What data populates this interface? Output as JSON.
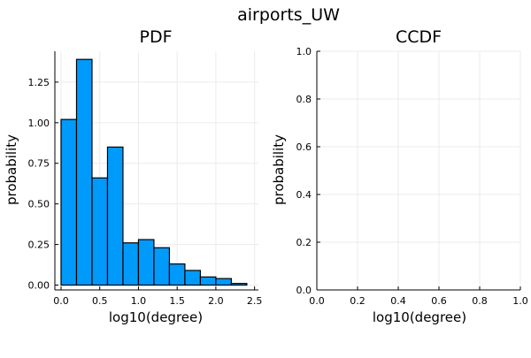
{
  "figure": {
    "title": "airports_UW",
    "colors": {
      "bar_fill": "#009AFA",
      "bar_stroke": "#000000",
      "grid": "#EBEBEB",
      "axis": "#000000"
    }
  },
  "chart_data": [
    {
      "type": "bar",
      "title": "PDF",
      "xlabel": "log10(degree)",
      "ylabel": "probability",
      "xlim": [
        -0.08,
        2.55
      ],
      "ylim": [
        -0.03,
        1.44
      ],
      "grid": true,
      "xticks": [
        0.0,
        0.5,
        1.0,
        1.5,
        2.0,
        2.5
      ],
      "xtick_labels": [
        "0.0",
        "0.5",
        "1.0",
        "1.5",
        "2.0",
        "2.5"
      ],
      "yticks": [
        0.0,
        0.25,
        0.5,
        0.75,
        1.0,
        1.25
      ],
      "ytick_labels": [
        "0.00",
        "0.25",
        "0.50",
        "0.75",
        "1.00",
        "1.25"
      ],
      "bin_edges": [
        0.0,
        0.2,
        0.4,
        0.6,
        0.8,
        1.0,
        1.2,
        1.4,
        1.6,
        1.8,
        2.0,
        2.2,
        2.4
      ],
      "values": [
        1.02,
        1.39,
        0.66,
        0.85,
        0.26,
        0.28,
        0.23,
        0.13,
        0.09,
        0.05,
        0.04,
        0.01
      ]
    },
    {
      "type": "line",
      "title": "CCDF",
      "xlabel": "log10(degree)",
      "ylabel": "probability",
      "xlim": [
        0,
        1
      ],
      "ylim": [
        0,
        1
      ],
      "grid": true,
      "xticks": [
        0.0,
        0.2,
        0.4,
        0.6,
        0.8,
        1.0
      ],
      "xtick_labels": [
        "0.0",
        "0.2",
        "0.4",
        "0.6",
        "0.8",
        "1.0"
      ],
      "yticks": [
        0.0,
        0.2,
        0.4,
        0.6,
        0.8,
        1.0
      ],
      "ytick_labels": [
        "0.0",
        "0.2",
        "0.4",
        "0.6",
        "0.8",
        "1.0"
      ],
      "series": []
    }
  ]
}
